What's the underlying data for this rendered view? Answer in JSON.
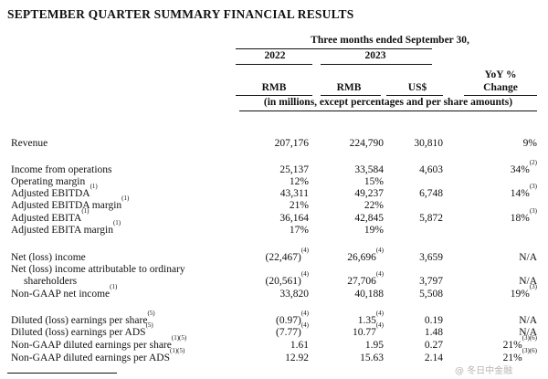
{
  "title": "SEPTEMBER QUARTER SUMMARY FINANCIAL RESULTS",
  "header": {
    "period": "Three months ended September 30,",
    "year_2022": "2022",
    "year_2023": "2023",
    "yoy_line1": "YoY %",
    "yoy_line2": "Change",
    "cur_rmb_2022": "RMB",
    "cur_rmb_2023": "RMB",
    "cur_usd": "US$",
    "units": "(in millions, except percentages and per share amounts)"
  },
  "rows": [
    {
      "label": "Revenue",
      "fn": "",
      "y2022": "207,176",
      "y2022_fn": "",
      "y2023": "224,790",
      "y2023_fn": "",
      "usd": "30,810",
      "yoy": "9%",
      "yoy_fn": ""
    },
    {
      "label": "Income from operations",
      "fn": "",
      "y2022": "25,137",
      "y2022_fn": "",
      "y2023": "33,584",
      "y2023_fn": "",
      "usd": "4,603",
      "yoy": "34%",
      "yoy_fn": "(2)"
    },
    {
      "label": "Operating margin",
      "fn": "",
      "y2022": "12%",
      "y2022_fn": "",
      "y2023": "15%",
      "y2023_fn": "",
      "usd": "",
      "yoy": "",
      "yoy_fn": ""
    },
    {
      "label": "Adjusted EBITDA",
      "fn": "(1)",
      "y2022": "43,311",
      "y2022_fn": "",
      "y2023": "49,237",
      "y2023_fn": "",
      "usd": "6,748",
      "yoy": "14%",
      "yoy_fn": "(3)"
    },
    {
      "label": "Adjusted EBITDA margin",
      "fn": "(1)",
      "y2022": "21%",
      "y2022_fn": "",
      "y2023": "22%",
      "y2023_fn": "",
      "usd": "",
      "yoy": "",
      "yoy_fn": ""
    },
    {
      "label": "Adjusted EBITA",
      "fn": "(1)",
      "y2022": "36,164",
      "y2022_fn": "",
      "y2023": "42,845",
      "y2023_fn": "",
      "usd": "5,872",
      "yoy": "18%",
      "yoy_fn": "(3)"
    },
    {
      "label": "Adjusted EBITA margin",
      "fn": "(1)",
      "y2022": "17%",
      "y2022_fn": "",
      "y2023": "19%",
      "y2023_fn": "",
      "usd": "",
      "yoy": "",
      "yoy_fn": ""
    },
    {
      "label": "Net (loss) income",
      "fn": "",
      "y2022": "(22,467)",
      "y2022_fn": "(4)",
      "y2023": "26,696",
      "y2023_fn": "(4)",
      "usd": "3,659",
      "yoy": "N/A",
      "yoy_fn": ""
    },
    {
      "label": "Net (loss) income attributable to ordinary",
      "fn": "",
      "y2022": "",
      "y2022_fn": "",
      "y2023": "",
      "y2023_fn": "",
      "usd": "",
      "yoy": "",
      "yoy_fn": ""
    },
    {
      "label": "shareholders",
      "fn": "",
      "y2022": "(20,561)",
      "y2022_fn": "(4)",
      "y2023": "27,706",
      "y2023_fn": "(4)",
      "usd": "3,797",
      "yoy": "N/A",
      "yoy_fn": ""
    },
    {
      "label": "Non-GAAP net income",
      "fn": "(1)",
      "y2022": "33,820",
      "y2022_fn": "",
      "y2023": "40,188",
      "y2023_fn": "",
      "usd": "5,508",
      "yoy": "19%",
      "yoy_fn": "(3)"
    },
    {
      "label": "Diluted (loss) earnings per share",
      "fn": "(5)",
      "y2022": "(0.97)",
      "y2022_fn": "(4)",
      "y2023": "1.35",
      "y2023_fn": "(4)",
      "usd": "0.19",
      "yoy": "N/A",
      "yoy_fn": ""
    },
    {
      "label": "Diluted (loss) earnings per ADS",
      "fn": "(5)",
      "y2022": "(7.77)",
      "y2022_fn": "(4)",
      "y2023": "10.77",
      "y2023_fn": "(4)",
      "usd": "1.48",
      "yoy": "N/A",
      "yoy_fn": ""
    },
    {
      "label": "Non-GAAP diluted earnings per share",
      "fn": "(1)(5)",
      "y2022": "1.61",
      "y2022_fn": "",
      "y2023": "1.95",
      "y2023_fn": "",
      "usd": "0.27",
      "yoy": "21%",
      "yoy_fn": "(3)(6)"
    },
    {
      "label": "Non-GAAP diluted earnings per ADS",
      "fn": "(1)(5)",
      "y2022": "12.92",
      "y2022_fn": "",
      "y2023": "15.63",
      "y2023_fn": "",
      "usd": "2.14",
      "yoy": "21%",
      "yoy_fn": "(3)(6)"
    }
  ],
  "watermark": "@ 冬日中金融"
}
